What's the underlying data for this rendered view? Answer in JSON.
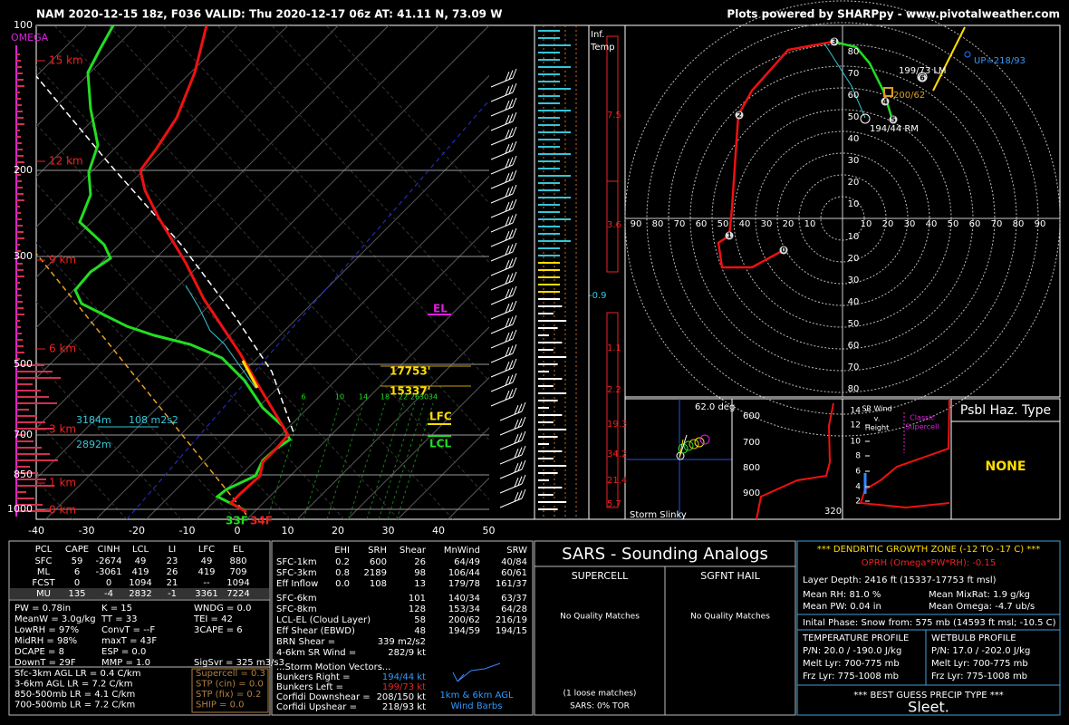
{
  "header": {
    "title": "NAM 2020-12-15 18z, F036  VALID: Thu 2020-12-17 06z  AT: 41.11 N, 73.09 W",
    "credit": "Plots powered by SHARPpy - www.pivotalweather.com"
  },
  "skewt": {
    "omega": "OMEGA",
    "pressures": [
      100,
      200,
      300,
      500,
      700,
      850,
      1000
    ],
    "temperatures": [
      -40,
      -30,
      -20,
      -10,
      0,
      10,
      20,
      30,
      40,
      50
    ],
    "heights": [
      "15 km",
      "12 km",
      "9 km",
      "6 km",
      "3 km",
      "1 km",
      "0 km"
    ],
    "mixing_ratios": [
      "6",
      "10",
      "14",
      "18",
      "22",
      "26",
      "30",
      "34"
    ],
    "annotations": {
      "eff_top": "3184m",
      "eff_srh": "108 m2s2",
      "eff_bottom": "2892m",
      "dgz_top": "17753'",
      "dgz_bottom": "15337'",
      "lfc": "LFC",
      "lcl": "LCL",
      "el": "EL",
      "sfc_dewpoint": "33F",
      "sfc_temperature": "34F"
    }
  },
  "inferred_temp": {
    "label_1": "Inf.",
    "label_2": "Temp",
    "values": [
      7.5,
      3.6,
      -0.9,
      1.1,
      2.2,
      19.3,
      34.2,
      21.4,
      5.7
    ]
  },
  "hodograph": {
    "rings": [
      10,
      20,
      30,
      40,
      50,
      60,
      70,
      80
    ],
    "horizontal": [
      10,
      20,
      30,
      40,
      50,
      60,
      70,
      80,
      90
    ],
    "points": [
      "0",
      "1",
      "2",
      "3",
      "4",
      "5",
      "6"
    ],
    "left_mover": "199/73 LM",
    "mean_wind": "200/62",
    "right_mover": "194/44 RM",
    "updraft": "UP=218/93"
  },
  "slinky": {
    "angle": "62.0 deg",
    "title": "Storm Slinky"
  },
  "theta_e": {
    "pressures": [
      600,
      700,
      800,
      900
    ],
    "temperature": 320
  },
  "sr_wind": {
    "title": [
      "SR Wind",
      "v.",
      "Height"
    ],
    "heights": [
      14,
      12,
      10,
      8,
      6,
      4,
      2
    ],
    "supercell": [
      "Classic",
      "Supercell"
    ]
  },
  "hazard": {
    "title": "Psbl Haz. Type",
    "value": "NONE"
  },
  "thermo": {
    "headers": [
      "PCL",
      "CAPE",
      "CINH",
      "LCL",
      "LI",
      "LFC",
      "EL"
    ],
    "rows": [
      [
        "SFC",
        "59",
        "-2674",
        "49",
        "23",
        "49",
        "880"
      ],
      [
        "ML",
        "6",
        "-3061",
        "419",
        "26",
        "419",
        "709"
      ],
      [
        "FCST",
        "0",
        "0",
        "1094",
        "21",
        "--",
        "1094"
      ],
      [
        "MU",
        "135",
        "-4",
        "2832",
        "-1",
        "3361",
        "7224"
      ]
    ],
    "indices": [
      [
        "PW = 0.78in",
        "K = 15",
        "WNDG = 0.0"
      ],
      [
        "MeanW = 3.0g/kg",
        "TT = 33",
        "TEI = 42"
      ],
      [
        "LowRH = 97%",
        "ConvT = --F",
        "3CAPE = 6"
      ],
      [
        "MidRH = 98%",
        "maxT = 43F"
      ],
      [
        "DCAPE = 8",
        "ESP = 0.0"
      ],
      [
        "DownT = 29F",
        "MMP = 1.0",
        "SigSvr = 325 m3/s3"
      ]
    ],
    "lapse_rates": [
      "Sfc-3km AGL LR = 0.4 C/km",
      "3-6km AGL LR = 7.2 C/km",
      "850-500mb LR = 4.1 C/km",
      "700-500mb LR = 7.2 C/km"
    ],
    "composites": [
      "Supercell = 0.3",
      "STP (cin) = 0.0",
      "STP (fix) = 0.2",
      "SHIP = 0.0"
    ]
  },
  "kinematics": {
    "headers": [
      "EHI",
      "SRH",
      "Shear",
      "MnWind",
      "SRW"
    ],
    "rows": [
      {
        "label": "SFC-1km",
        "cells": [
          "0.2",
          "600",
          "26",
          "64/49",
          "40/84"
        ]
      },
      {
        "label": "SFC-3km",
        "cells": [
          "0.8",
          "2189",
          "98",
          "106/44",
          "60/61"
        ]
      },
      {
        "label": "Eff Inflow",
        "cells": [
          "0.0",
          "108",
          "13",
          "179/78",
          "161/37"
        ]
      },
      {
        "label": "SFC-6km",
        "cells": [
          "101",
          "140/34",
          "63/37"
        ]
      },
      {
        "label": "SFC-8km",
        "cells": [
          "128",
          "153/34",
          "64/28"
        ]
      },
      {
        "label": "LCL-EL (Cloud Layer)",
        "cells": [
          "58",
          "200/62",
          "216/19"
        ]
      },
      {
        "label": "Eff Shear (EBWD)",
        "cells": [
          "48",
          "194/59",
          "194/15"
        ]
      }
    ],
    "params": [
      [
        "BRN Shear =",
        "339 m2/s2"
      ],
      [
        "4-6km SR Wind =",
        "282/9 kt"
      ]
    ],
    "motion_title": "...Storm Motion Vectors...",
    "motions": [
      [
        "Bunkers Right =",
        "194/44 kt"
      ],
      [
        "Bunkers Left =",
        "199/73 kt"
      ],
      [
        "Corfidi Downshear =",
        "208/150 kt"
      ],
      [
        "Corfidi Upshear =",
        "218/93 kt"
      ]
    ],
    "barb_legend": [
      "1km & 6km AGL",
      "Wind Barbs"
    ]
  },
  "sars": {
    "title": "SARS - Sounding Analogs",
    "supercell": "SUPERCELL",
    "hail": "SGFNT HAIL",
    "supercell_result": "No Quality Matches",
    "hail_result": "No Quality Matches",
    "loose": "(1 loose matches)",
    "tor": "SARS: 0% TOR"
  },
  "precip": {
    "dgz_title": "*** DENDRITIC GROWTH ZONE (-12 TO -17 C) ***",
    "oprh": "OPRH (Omega*PW*RH): -0.15",
    "layer_depth": "Layer Depth: 2416 ft (15337-17753 ft msl)",
    "mean_rh": "Mean RH: 81.0 %",
    "mean_mixrat": "Mean MixRat: 1.9 g/kg",
    "mean_pw": "Mean PW: 0.04 in",
    "mean_omega": "Mean Omega: -4.7 ub/s",
    "initial_phase": "Inital Phase: Snow from: 575 mb (14593 ft msl; -10.5 C)",
    "temperature_profile": {
      "title": "TEMPERATURE PROFILE",
      "pn": "P/N: 20.0 / -190.0 J/kg",
      "melt": "Melt Lyr: 700-775 mb",
      "frz": "Frz Lyr: 775-1008 mb"
    },
    "wetbulb_profile": {
      "title": "WETBULB PROFILE",
      "pn": "P/N: 17.0 / -202.0 J/kg",
      "melt": "Melt Lyr: 700-775 mb",
      "frz": "Frz Lyr: 775-1008 mb"
    },
    "best_guess_title": "*** BEST GUESS PRECIP TYPE ***",
    "best_guess": "Sleet."
  }
}
